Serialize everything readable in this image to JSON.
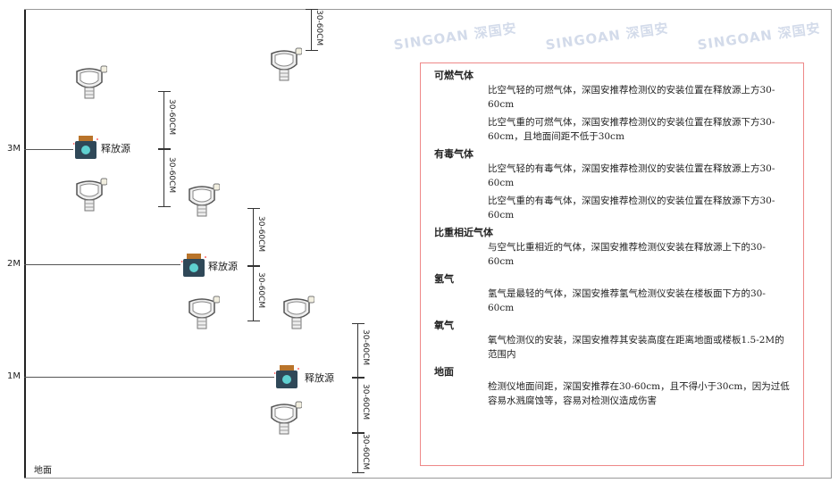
{
  "watermark": "SINGOAN 深国安",
  "levels": {
    "l3": "3M",
    "l2": "2M",
    "l1": "1M",
    "ground": "地面"
  },
  "source_label": "释放源",
  "dim_label": "30-60CM",
  "panel": {
    "sections": [
      {
        "title": "可燃气体",
        "paras": [
          "比空气轻的可燃气体，深国安推荐检测仪的安装位置在释放源上方30-60cm",
          "比空气重的可燃气体，深国安推荐检测仪的安装位置在释放源下方30-60cm，且地面间距不低于30cm"
        ]
      },
      {
        "title": "有毒气体",
        "paras": [
          "比空气轻的有毒气体，深国安推荐检测仪的安装位置在释放源上方30-60cm",
          "比空气重的有毒气体，深国安推荐检测仪的安装位置在释放源下方30-60cm"
        ]
      },
      {
        "title": "比重相近气体",
        "paras": [
          "与空气比重相近的气体，深国安推荐检测仪安装在释放源上下的30-60cm"
        ]
      },
      {
        "title": "氢气",
        "paras": [
          "氢气是最轻的气体，深国安推荐氢气检测仪安装在楼板面下方的30-60cm"
        ]
      },
      {
        "title": "氧气",
        "paras": [
          "氧气检测仪的安装，深国安推荐其安装高度在距离地面或楼板1.5-2M的范围内"
        ]
      },
      {
        "title": "地面",
        "paras": [
          "检测仪地面间距，深国安推荐在30-60cm，且不得小于30cm，因为过低容易水溅腐蚀等，容易对检测仪造成伤害"
        ]
      }
    ]
  }
}
